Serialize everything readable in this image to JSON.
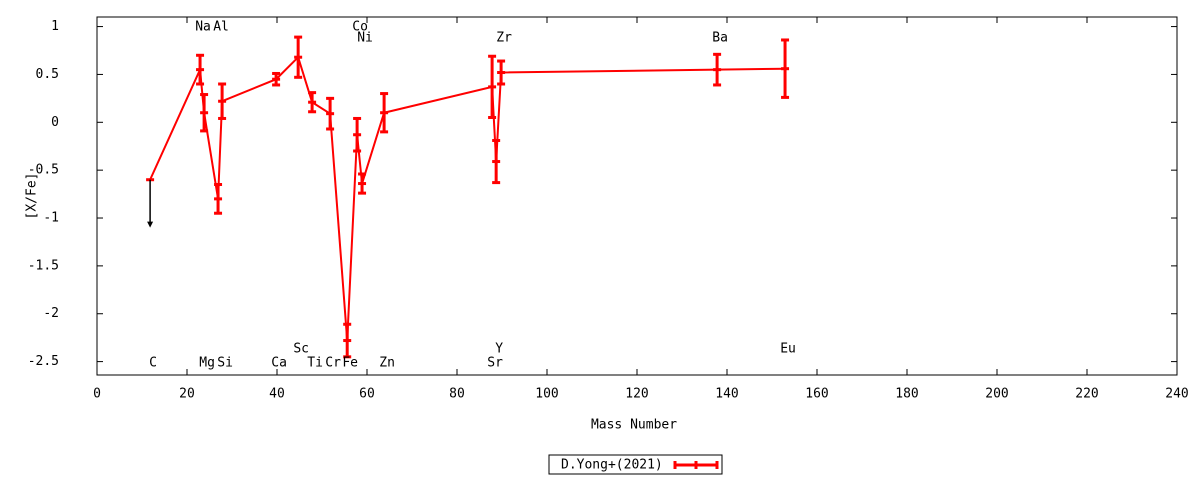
{
  "chart_data": {
    "type": "line",
    "xlabel": "Mass Number",
    "ylabel": "[X/Fe]",
    "xlim": [
      0,
      240
    ],
    "ylim": [
      -2.64,
      1.1
    ],
    "xticks": [
      0,
      20,
      40,
      60,
      80,
      100,
      120,
      140,
      160,
      180,
      200,
      220,
      240
    ],
    "yticks": [
      1,
      0.5,
      0,
      -0.5,
      -1,
      -1.5,
      -2,
      -2.5
    ],
    "legend": "bottom",
    "series": [
      {
        "name": "D.Yong+(2021)",
        "color": "#ff0000",
        "x": [
          11.8,
          22.9,
          23.8,
          26.9,
          27.8,
          39.8,
          44.7,
          47.8,
          51.8,
          55.6,
          57.8,
          58.9,
          63.8,
          87.8,
          88.7,
          89.8,
          137.8,
          152.9
        ],
        "values": [
          -0.6,
          0.55,
          0.1,
          -0.8,
          0.22,
          0.45,
          0.68,
          0.21,
          0.09,
          -2.28,
          -0.13,
          -0.64,
          0.1,
          0.37,
          -0.41,
          0.52,
          0.55,
          0.56
        ],
        "errors": [
          null,
          0.15,
          0.19,
          0.15,
          0.18,
          0.06,
          0.21,
          0.1,
          0.16,
          0.17,
          0.17,
          0.1,
          0.2,
          0.32,
          0.22,
          0.12,
          0.16,
          0.3
        ],
        "labels": [
          "C",
          "Na",
          "Mg",
          "Al",
          "Si",
          "Ca",
          "Sc",
          "Ti",
          "Cr",
          "Fe",
          "Co",
          "Ni",
          "Zn",
          "Sr",
          "Y",
          "Zr",
          "Ba",
          "Eu"
        ]
      }
    ],
    "arrows": [
      {
        "x": 11.8,
        "y_from": -0.6,
        "y_to": -1.1
      }
    ]
  }
}
